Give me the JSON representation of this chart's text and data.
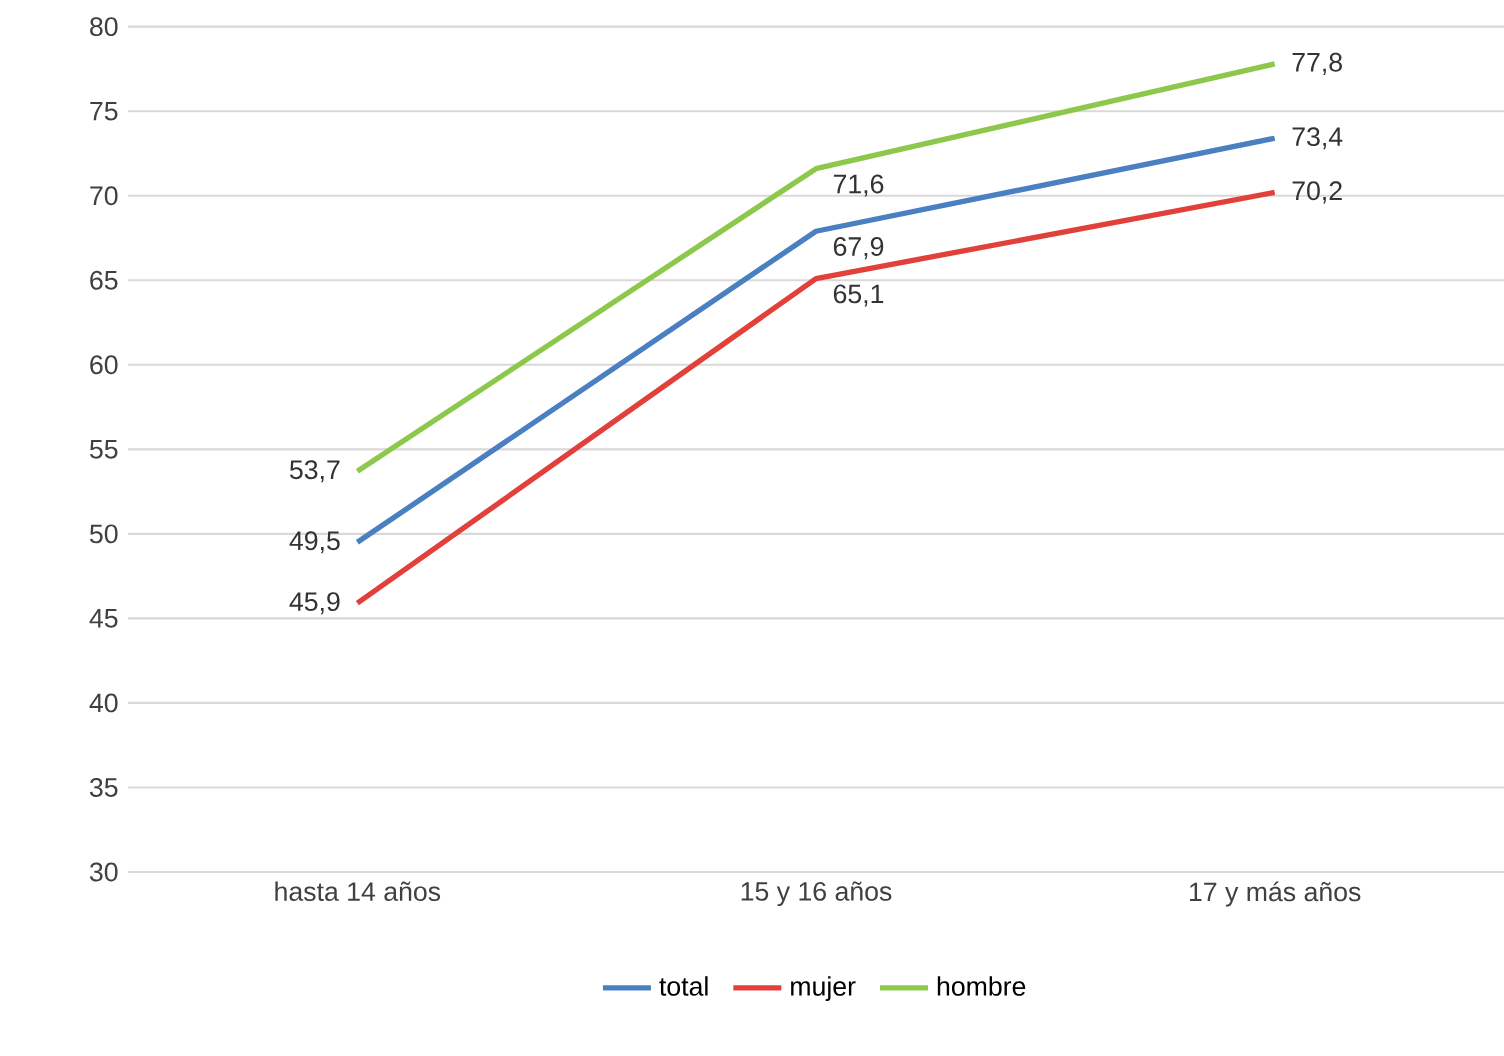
{
  "chart_data": {
    "type": "line",
    "categories": [
      "hasta 14 años",
      "15 y 16 años",
      "17 y más años"
    ],
    "series": [
      {
        "name": "total",
        "color": "#4a7fc1",
        "values": [
          49.5,
          67.9,
          73.4
        ],
        "value_labels": [
          "49,5",
          "67,9",
          "73,4"
        ]
      },
      {
        "name": "mujer",
        "color": "#e2413b",
        "values": [
          45.9,
          65.1,
          70.2
        ],
        "value_labels": [
          "45,9",
          "65,1",
          "70,2"
        ]
      },
      {
        "name": "hombre",
        "color": "#8dc84c",
        "values": [
          53.7,
          71.6,
          77.8
        ],
        "value_labels": [
          "53,7",
          "71,6",
          "77,8"
        ]
      }
    ],
    "ylim": [
      30,
      80
    ],
    "yticks": [
      30,
      35,
      40,
      45,
      50,
      55,
      60,
      65,
      70,
      75,
      80
    ],
    "grid": "y",
    "legend": "bottom",
    "marker": "none",
    "line_style": "solid"
  }
}
